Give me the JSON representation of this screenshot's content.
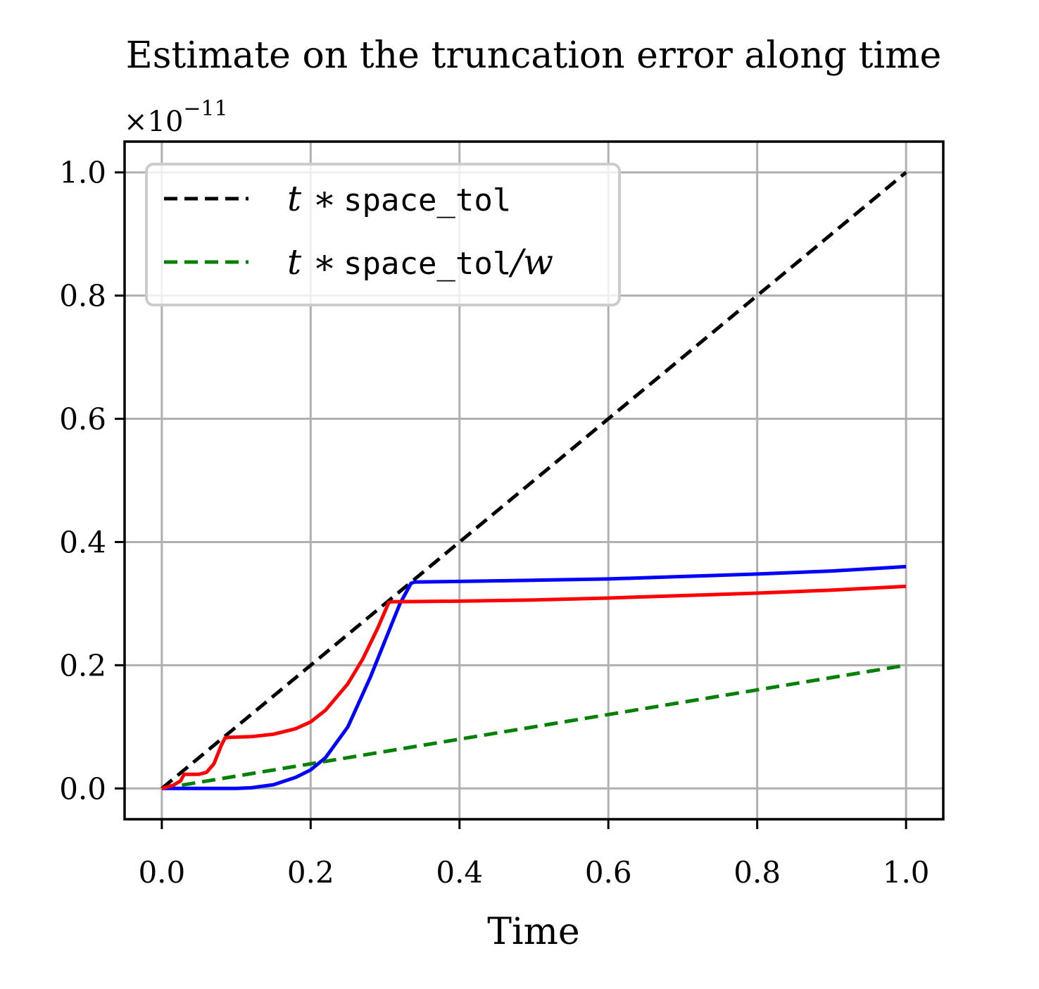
{
  "chart_data": {
    "type": "line",
    "title": "Estimate on the truncation error along time",
    "xlabel": "Time",
    "ylabel": "",
    "y_scale_label": "×10",
    "y_scale_exponent": "−11",
    "xlim": [
      -0.05,
      1.05
    ],
    "ylim": [
      -0.05,
      1.05
    ],
    "xticks": [
      0.0,
      0.2,
      0.4,
      0.6,
      0.8,
      1.0
    ],
    "xtick_labels": [
      "0.0",
      "0.2",
      "0.4",
      "0.6",
      "0.8",
      "1.0"
    ],
    "yticks": [
      0.0,
      0.2,
      0.4,
      0.6,
      0.8,
      1.0
    ],
    "ytick_labels": [
      "0.0",
      "0.2",
      "0.4",
      "0.6",
      "0.8",
      "1.0"
    ],
    "grid": true,
    "legend_position": "upper-left",
    "series": [
      {
        "name": "t ∗ space_tol",
        "legend_math": "t ∗",
        "legend_code": "space_tol",
        "legend_suffix": "",
        "color": "#000000",
        "dashed": true,
        "x": [
          0.0,
          1.0
        ],
        "y": [
          0.0,
          1.0
        ]
      },
      {
        "name": "t ∗ space_tol/w",
        "legend_math": "t ∗",
        "legend_code": "space_tol",
        "legend_suffix": "/w",
        "color": "#008000",
        "dashed": true,
        "x": [
          0.0,
          1.0
        ],
        "y": [
          0.0,
          0.2
        ]
      },
      {
        "color": "#0000ff",
        "dashed": false,
        "x": [
          0.0,
          0.05,
          0.1,
          0.12,
          0.15,
          0.18,
          0.2,
          0.22,
          0.25,
          0.28,
          0.3,
          0.32,
          0.335,
          0.34,
          0.4,
          0.5,
          0.6,
          0.7,
          0.8,
          0.9,
          1.0
        ],
        "y": [
          0.0,
          0.0,
          0.0,
          0.001,
          0.006,
          0.018,
          0.03,
          0.05,
          0.1,
          0.18,
          0.24,
          0.3,
          0.333,
          0.335,
          0.336,
          0.338,
          0.34,
          0.344,
          0.348,
          0.353,
          0.36
        ]
      },
      {
        "color": "#ff0000",
        "dashed": false,
        "x": [
          0.0,
          0.015,
          0.025,
          0.03,
          0.05,
          0.06,
          0.07,
          0.08,
          0.085,
          0.09,
          0.12,
          0.15,
          0.18,
          0.2,
          0.22,
          0.25,
          0.27,
          0.29,
          0.305,
          0.31,
          0.4,
          0.5,
          0.6,
          0.7,
          0.8,
          0.9,
          1.0
        ],
        "y": [
          0.0,
          0.005,
          0.012,
          0.023,
          0.023,
          0.026,
          0.04,
          0.07,
          0.082,
          0.083,
          0.084,
          0.088,
          0.097,
          0.108,
          0.127,
          0.17,
          0.21,
          0.26,
          0.302,
          0.303,
          0.304,
          0.306,
          0.309,
          0.313,
          0.317,
          0.322,
          0.328
        ]
      }
    ]
  }
}
